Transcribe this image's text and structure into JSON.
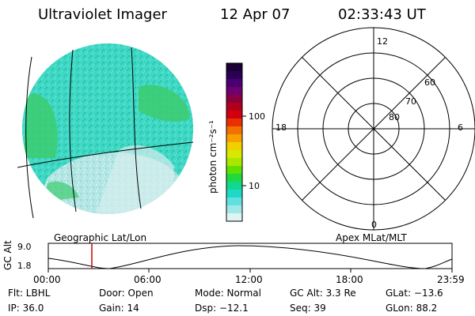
{
  "header": {
    "title": "Ultraviolet Imager",
    "date": "12 Apr 07",
    "time": "02:33:43 UT"
  },
  "colorbar": {
    "unit_label": "photon cm⁻²s⁻¹",
    "ticks": [
      "100",
      "10"
    ],
    "colors": [
      "#1a0033",
      "#2a0055",
      "#4a0070",
      "#6e0070",
      "#8a0040",
      "#b0001a",
      "#d00010",
      "#e83000",
      "#f07000",
      "#f8a000",
      "#f0d000",
      "#d8e800",
      "#a8e800",
      "#60e000",
      "#20d840",
      "#10d890",
      "#20d8c8",
      "#60e0e0",
      "#a0e8e8",
      "#e0f4f4"
    ]
  },
  "image_panel": {
    "label": "Geographic Lat/Lon"
  },
  "polar_panel": {
    "label": "Apex MLat/MLT",
    "mlt_labels": {
      "top": "12",
      "left": "18",
      "right": "6",
      "bottom": "0"
    },
    "lat_labels": [
      "60",
      "70",
      "80"
    ]
  },
  "orbit_plot": {
    "y_label": "GC Alt",
    "y_ticks": [
      "9.0",
      "1.8"
    ],
    "x_ticks": [
      "00:00",
      "06:00",
      "12:00",
      "18:00",
      "23:59"
    ],
    "marker_color": "#cc0000"
  },
  "status": {
    "flt": "Flt: LBHL",
    "ip": "IP: 36.0",
    "door": "Door: Open",
    "gain": "Gain: 14",
    "mode": "Mode: Normal",
    "dsp": "Dsp:  −12.1",
    "gc_alt": "GC Alt: 3.3 Re",
    "seq": "Seq: 39",
    "glat": "GLat: −13.6",
    "glon": "GLon:  88.2"
  }
}
